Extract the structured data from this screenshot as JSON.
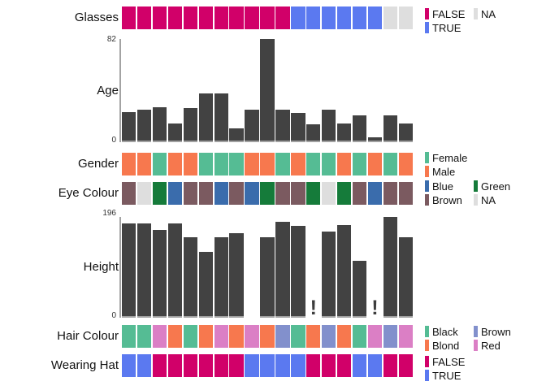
{
  "marks": {
    "missing": "!"
  },
  "colors": {
    "bar": "#424242",
    "axis": "#a3a3a3",
    "background": "#ffffff",
    "text": "#111111"
  },
  "chart_data": [
    {
      "id": "glasses",
      "type": "heatmap",
      "label": "Glasses",
      "values": [
        "FALSE",
        "FALSE",
        "FALSE",
        "FALSE",
        "FALSE",
        "FALSE",
        "FALSE",
        "FALSE",
        "FALSE",
        "FALSE",
        "FALSE",
        "TRUE",
        "TRUE",
        "TRUE",
        "TRUE",
        "TRUE",
        "TRUE",
        "NA",
        "NA"
      ],
      "color_map": {
        "FALSE": "#d10069",
        "TRUE": "#5b79f0",
        "NA": "#dedede"
      },
      "legend_columns": [
        [
          "FALSE",
          "TRUE"
        ],
        [
          "NA"
        ]
      ]
    },
    {
      "id": "age",
      "type": "bar",
      "label": "Age",
      "values": [
        24,
        26,
        28,
        15,
        27,
        39,
        39,
        11,
        26,
        82,
        26,
        23,
        14,
        26,
        15,
        21,
        4,
        21,
        15
      ],
      "axis": {
        "min": 0,
        "max": 82,
        "max_label": "82",
        "min_label": "0"
      }
    },
    {
      "id": "gender",
      "type": "heatmap",
      "label": "Gender",
      "values": [
        "Male",
        "Male",
        "Female",
        "Male",
        "Male",
        "Female",
        "Female",
        "Female",
        "Male",
        "Male",
        "Female",
        "Male",
        "Female",
        "Female",
        "Male",
        "Female",
        "Male",
        "Female",
        "Male"
      ],
      "color_map": {
        "Female": "#55bc94",
        "Male": "#f7784e"
      },
      "legend_columns": [
        [
          "Female",
          "Male"
        ]
      ]
    },
    {
      "id": "eye",
      "type": "heatmap",
      "label": "Eye Colour",
      "values": [
        "Brown",
        "NA",
        "Green",
        "Blue",
        "Brown",
        "Brown",
        "Blue",
        "Brown",
        "Blue",
        "Green",
        "Brown",
        "Brown",
        "Green",
        "NA",
        "Green",
        "Brown",
        "Blue",
        "Brown",
        "Brown"
      ],
      "color_map": {
        "Blue": "#3a6cac",
        "Brown": "#7b5a60",
        "Green": "#157b3a",
        "NA": "#dedede"
      },
      "legend_columns": [
        [
          "Blue",
          "Brown"
        ],
        [
          "Green",
          "NA"
        ]
      ]
    },
    {
      "id": "height",
      "type": "bar",
      "label": "Height",
      "values": [
        183,
        183,
        170,
        184,
        157,
        128,
        156,
        164,
        0,
        157,
        187,
        178,
        null,
        168,
        181,
        111,
        null,
        196,
        157
      ],
      "axis": {
        "min": 0,
        "max": 196,
        "max_label": "196",
        "min_label": "0"
      }
    },
    {
      "id": "hair",
      "type": "heatmap",
      "label": "Hair Colour",
      "values": [
        "Black",
        "Black",
        "Red",
        "Blond",
        "Black",
        "Blond",
        "Red",
        "Blond",
        "Red",
        "Blond",
        "Brown",
        "Black",
        "Blond",
        "Brown",
        "Blond",
        "Black",
        "Red",
        "Brown",
        "Red"
      ],
      "color_map": {
        "Black": "#55bc94",
        "Blond": "#f7784e",
        "Brown": "#8290cc",
        "Red": "#db7fc5"
      },
      "legend_columns": [
        [
          "Black",
          "Blond"
        ],
        [
          "Brown",
          "Red"
        ]
      ]
    },
    {
      "id": "hat",
      "type": "heatmap",
      "label": "Wearing Hat",
      "values": [
        "TRUE",
        "TRUE",
        "FALSE",
        "FALSE",
        "FALSE",
        "FALSE",
        "FALSE",
        "FALSE",
        "TRUE",
        "TRUE",
        "TRUE",
        "TRUE",
        "FALSE",
        "FALSE",
        "FALSE",
        "TRUE",
        "TRUE",
        "FALSE",
        "FALSE"
      ],
      "color_map": {
        "FALSE": "#d10069",
        "TRUE": "#5b79f0"
      },
      "legend_columns": [
        [
          "FALSE",
          "TRUE"
        ]
      ]
    }
  ]
}
